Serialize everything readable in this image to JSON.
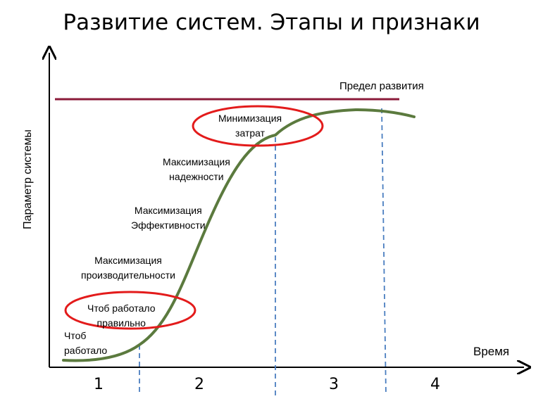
{
  "title": "Развитие систем. Этапы и признаки",
  "axes": {
    "y_label": "Параметр системы",
    "x_label": "Время"
  },
  "limit_label": "Предел развития",
  "curve_labels": {
    "works": "Чтоб\nработало",
    "works_correctly": "Чтоб работало\nправильно",
    "max_productivity": "Максимизация\nпроизводительности",
    "max_efficiency": "Максимизация\nЭффективности",
    "max_reliability": "Максимизация\nнадежности",
    "min_costs": "Минимизация\nзатрат"
  },
  "stages": [
    "1",
    "2",
    "3",
    "4"
  ],
  "colors": {
    "curve": "#5b7a3e",
    "limit_line": "#8b1a3a",
    "highlight_ellipse": "#e31b1b",
    "stage_divider": "#4a7ec0",
    "axis": "#000000"
  }
}
